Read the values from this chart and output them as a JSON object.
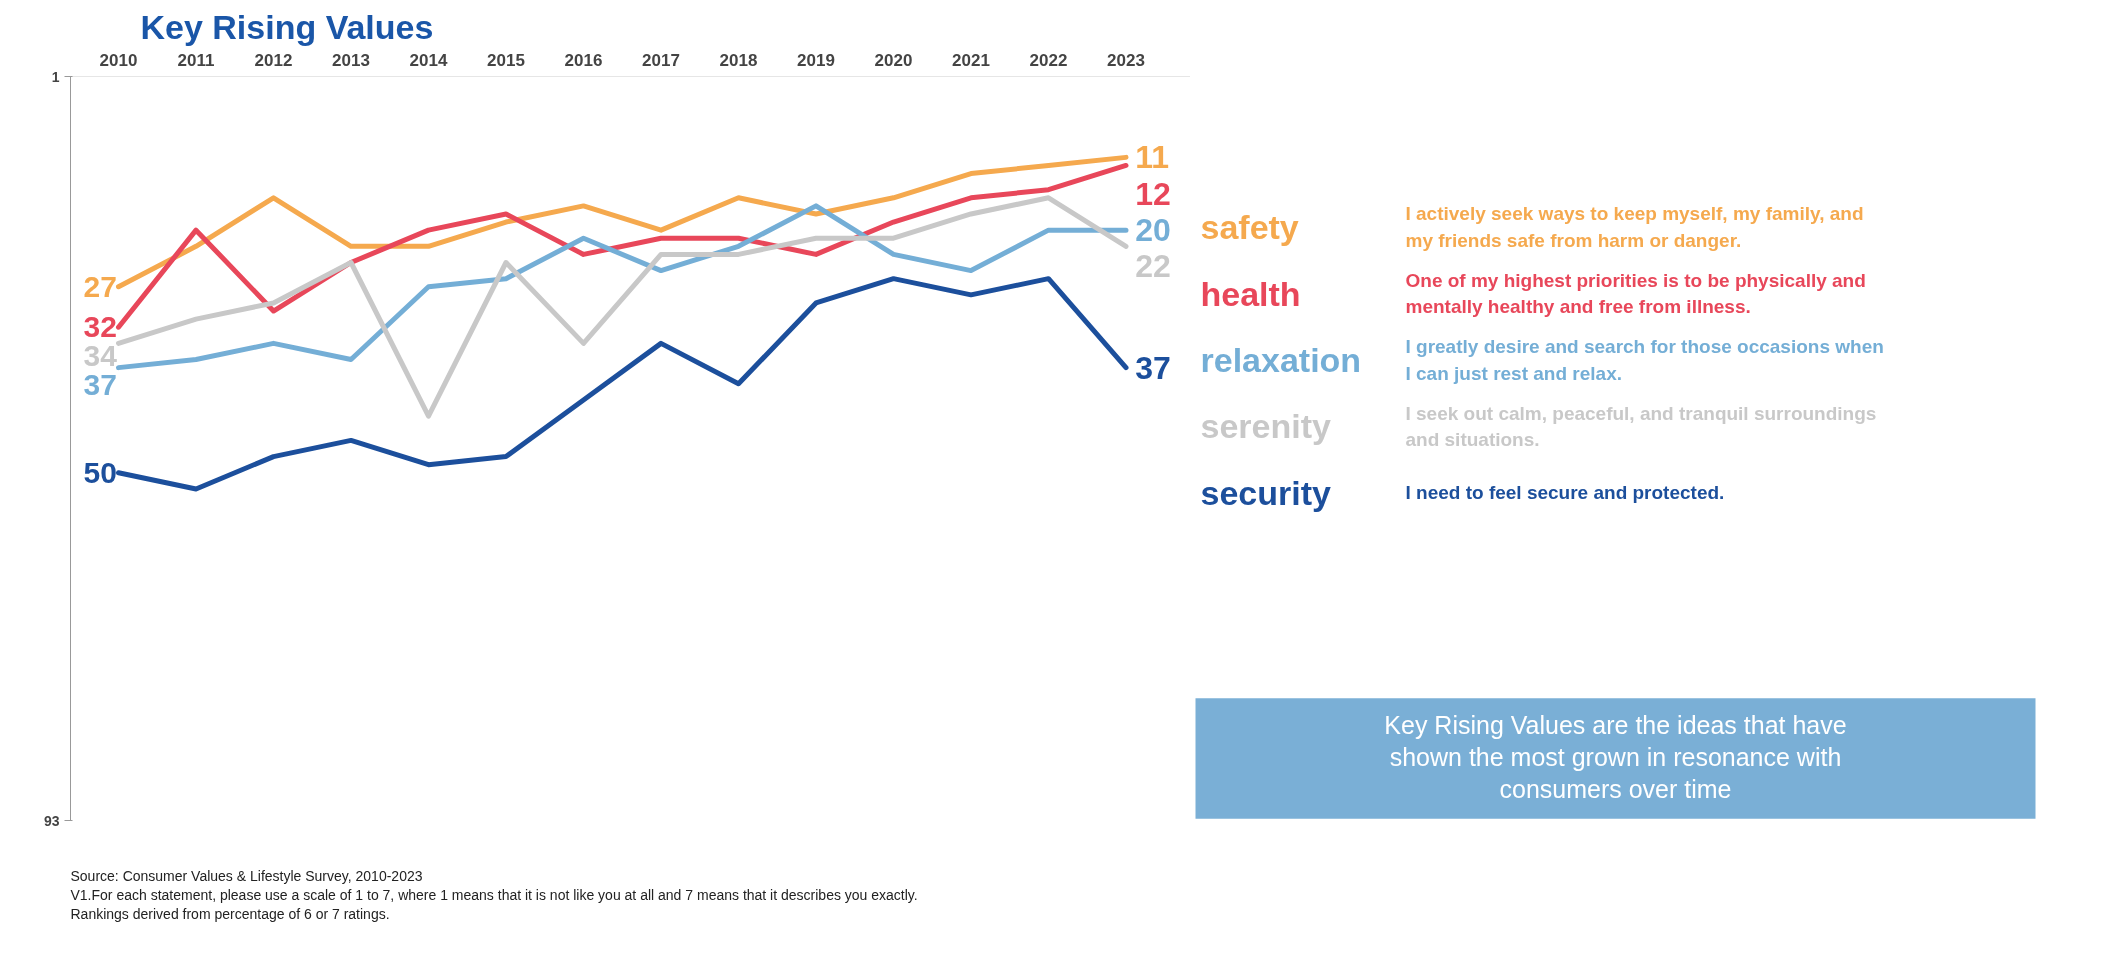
{
  "chart_data": {
    "type": "line",
    "title": "Key Rising Values",
    "categories": [
      "2010",
      "2011",
      "2012",
      "2013",
      "2014",
      "2015",
      "2016",
      "2017",
      "2018",
      "2019",
      "2020",
      "2021",
      "2022",
      "2023"
    ],
    "ylim": [
      93,
      1
    ],
    "yticks": [
      1,
      93
    ],
    "series": [
      {
        "name": "safety",
        "color": "#f5a94e",
        "values": [
          27,
          22,
          16,
          22,
          22,
          19,
          17,
          20,
          16,
          18,
          16,
          13,
          12,
          11
        ],
        "value_labels": [
          "27",
          null,
          null,
          null,
          null,
          null,
          null,
          null,
          null,
          null,
          null,
          null,
          null,
          "11"
        ]
      },
      {
        "name": "health",
        "color": "#e8475a",
        "values": [
          32,
          20,
          30,
          24,
          20,
          18,
          23,
          21,
          21,
          23,
          19,
          16,
          15,
          12
        ],
        "value_labels": [
          "32",
          null,
          null,
          null,
          null,
          null,
          null,
          null,
          null,
          null,
          null,
          null,
          null,
          "12"
        ]
      },
      {
        "name": "relaxation",
        "color": "#74aed6",
        "values": [
          37,
          36,
          34,
          36,
          27,
          26,
          21,
          25,
          22,
          17,
          23,
          25,
          20,
          20
        ],
        "value_labels": [
          "37",
          null,
          null,
          null,
          null,
          null,
          null,
          null,
          null,
          null,
          null,
          null,
          null,
          "20"
        ]
      },
      {
        "name": "serenity",
        "color": "#c8c8c8",
        "values": [
          34,
          31,
          29,
          24,
          43,
          24,
          34,
          23,
          23,
          21,
          21,
          18,
          16,
          22
        ],
        "value_labels": [
          "34",
          null,
          null,
          null,
          null,
          null,
          null,
          null,
          null,
          null,
          null,
          null,
          null,
          "22"
        ]
      },
      {
        "name": "security",
        "color": "#1c4f9c",
        "values": [
          50,
          52,
          48,
          46,
          49,
          48,
          41,
          34,
          39,
          29,
          26,
          28,
          26,
          37
        ],
        "value_labels": [
          "50",
          null,
          null,
          null,
          null,
          null,
          null,
          null,
          null,
          null,
          null,
          null,
          null,
          "37"
        ]
      }
    ],
    "annotations": [
      "I actively seek ways to keep myself, my family, and my friends safe from harm or danger.",
      "One of my highest priorities is to be physically and mentally healthy and free from illness.",
      "I greatly desire and search for those occasions when I can just rest and relax.",
      "I seek out calm, peaceful, and tranquil surroundings and situations.",
      "I need to feel secure and protected.",
      "Key Rising Values are the ideas that have shown the most grown in resonance with consumers over time",
      "Source: Consumer Values & Lifestyle Survey, 2010-2023",
      "V1.For each statement, please use a scale of 1 to 7, where 1 means that it is not like you at all and 7 means that it describes you exactly.",
      "Rankings derived from percentage of 6 or 7 ratings."
    ]
  }
}
